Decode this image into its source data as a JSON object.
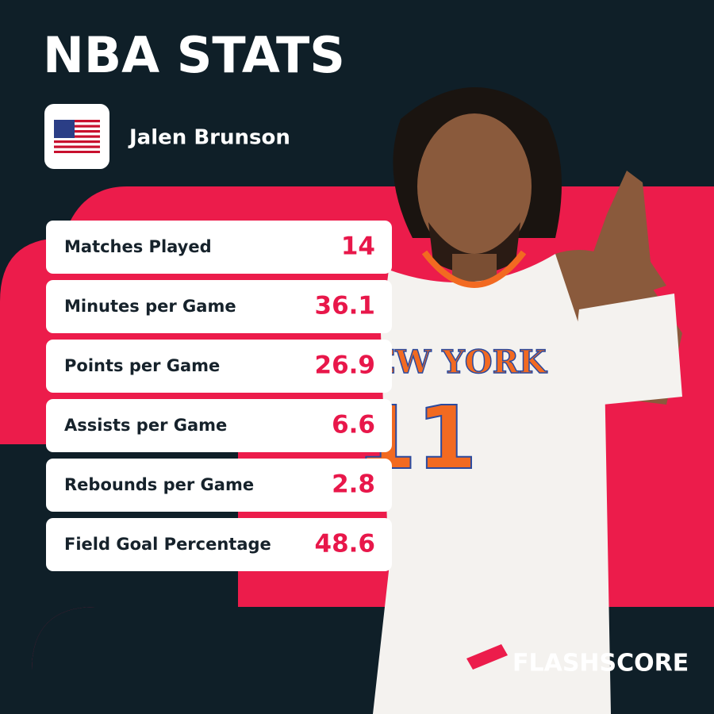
{
  "header": {
    "title": "NBA STATS",
    "player": "Jalen Brunson"
  },
  "stats": [
    {
      "label": "Matches Played",
      "value": 14
    },
    {
      "label": "Minutes per Game",
      "value": 36.1
    },
    {
      "label": "Points per Game",
      "value": 26.9
    },
    {
      "label": "Assists per Game",
      "value": 6.6
    },
    {
      "label": "Rebounds per Game",
      "value": 2.8
    },
    {
      "label": "Field Goal Percentage",
      "value": 48.6
    }
  ],
  "photo": {
    "jersey_text": "NEW YORK",
    "jersey_number": "11"
  },
  "brand": "FLASHSCORE"
}
